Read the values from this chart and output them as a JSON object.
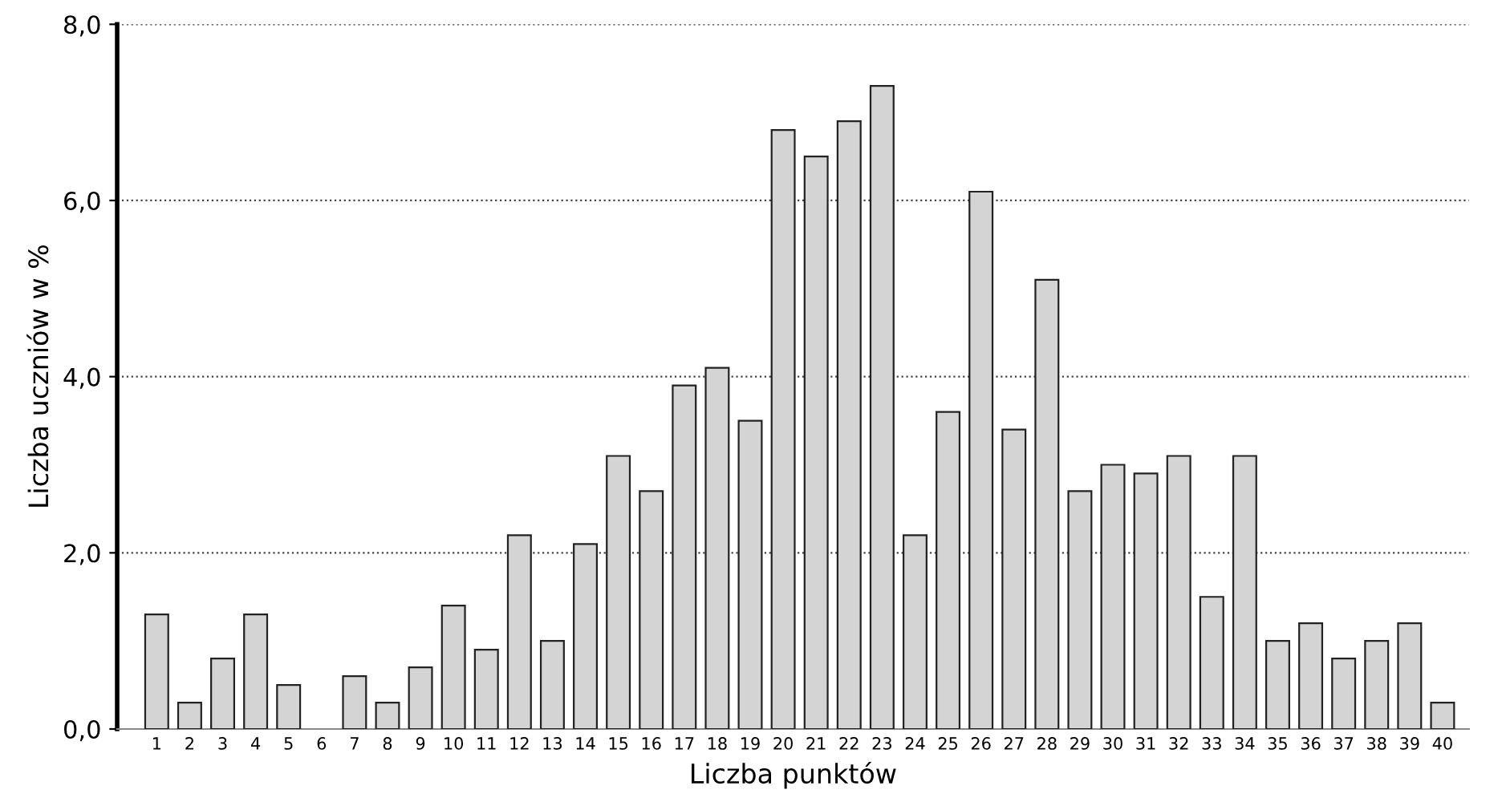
{
  "chart_data": {
    "type": "bar",
    "xlabel": "Liczba punktów",
    "ylabel": "Liczba uczniów w %",
    "categories": [
      "1",
      "2",
      "3",
      "4",
      "5",
      "6",
      "7",
      "8",
      "9",
      "10",
      "11",
      "12",
      "13",
      "14",
      "15",
      "16",
      "17",
      "18",
      "19",
      "20",
      "21",
      "22",
      "23",
      "24",
      "25",
      "26",
      "27",
      "28",
      "29",
      "30",
      "31",
      "32",
      "33",
      "34",
      "35",
      "36",
      "37",
      "38",
      "39",
      "40"
    ],
    "values": [
      1.3,
      0.3,
      0.8,
      1.3,
      0.5,
      0,
      0.6,
      0.3,
      0.7,
      1.4,
      0.9,
      2.2,
      1.0,
      2.1,
      3.1,
      2.7,
      3.9,
      4.1,
      3.5,
      6.8,
      6.5,
      6.9,
      7.3,
      2.2,
      3.6,
      6.1,
      3.4,
      5.1,
      2.7,
      3.0,
      2.9,
      3.1,
      1.5,
      3.1,
      1.0,
      1.2,
      0.8,
      1.0,
      1.2,
      0.3
    ],
    "color": "#d4d4d4",
    "ylim": [
      0,
      8
    ],
    "yticks": [
      {
        "value": 0,
        "label": "0,0"
      },
      {
        "value": 2,
        "label": "2,0"
      },
      {
        "value": 4,
        "label": "4,0"
      },
      {
        "value": 6,
        "label": "6,0"
      },
      {
        "value": 8,
        "label": "8,0"
      }
    ],
    "grid": "y"
  }
}
